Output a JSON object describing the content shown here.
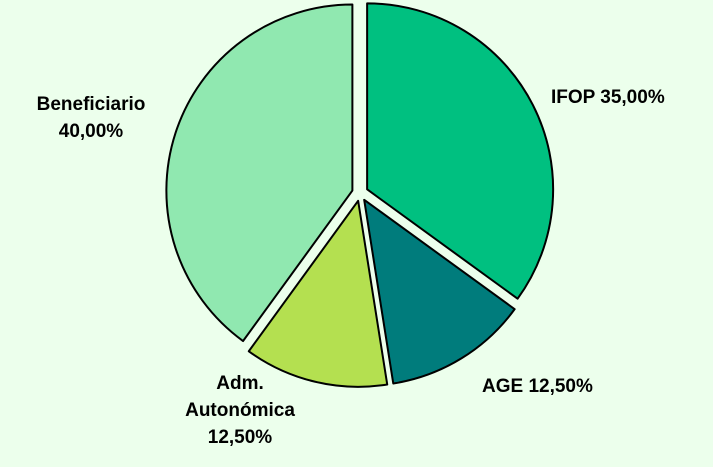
{
  "chart_data": {
    "type": "pie",
    "exploded": true,
    "start_angle_deg": 0,
    "direction": "clockwise",
    "slices": [
      {
        "name": "IFOP",
        "value": 35.0,
        "label_lines": [
          "IFOP 35,00%"
        ],
        "color": "#00c080"
      },
      {
        "name": "AGE",
        "value": 12.5,
        "label_lines": [
          "AGE 12,50%"
        ],
        "color": "#007c7c"
      },
      {
        "name": "Adm. Autonómica",
        "value": 12.5,
        "label_lines": [
          "Adm.",
          "Autonómica",
          "12,50%"
        ],
        "color": "#b4e050"
      },
      {
        "name": "Beneficiario",
        "value": 40.0,
        "label_lines": [
          "Beneficiario",
          "40,00%"
        ],
        "color": "#90e8b0"
      }
    ],
    "background": "#ecffec",
    "slice_border": "#000000"
  }
}
